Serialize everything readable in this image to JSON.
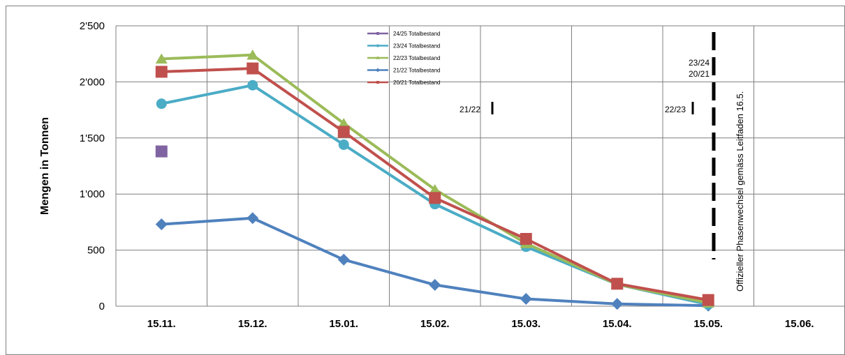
{
  "chart_data": {
    "type": "line",
    "ylabel": "Mengen in Tonnen",
    "xlabel": "",
    "categories": [
      "15.11.",
      "15.12.",
      "15.01.",
      "15.02.",
      "15.03.",
      "15.04.",
      "15.05.",
      "15.06."
    ],
    "y_ticks": [
      "0",
      "500",
      "1'000",
      "1'500",
      "2'000",
      "2'500"
    ],
    "ylim": [
      0,
      2500
    ],
    "grid": true,
    "legend_position": "top-center",
    "series": [
      {
        "name": "24/25 Totalbestand",
        "color": "#8064a2",
        "marker": "square",
        "values": [
          1380,
          null,
          null,
          null,
          null,
          null,
          null,
          null
        ]
      },
      {
        "name": "23/24 Totalbestand",
        "color": "#4bacc6",
        "marker": "circle",
        "values": [
          1805,
          1970,
          1440,
          910,
          530,
          195,
          15,
          null
        ]
      },
      {
        "name": "22/23 Totalbestand",
        "color": "#9bbb59",
        "marker": "triangle",
        "values": [
          2205,
          2240,
          1630,
          1040,
          560,
          195,
          30,
          null
        ]
      },
      {
        "name": "21/22 Totalbestand",
        "color": "#4f81bd",
        "marker": "diamond",
        "values": [
          730,
          785,
          415,
          190,
          65,
          20,
          5,
          null
        ]
      },
      {
        "name": "20/21 Totalbestand",
        "color": "#c0504d",
        "marker": "square",
        "values": [
          2090,
          2120,
          1555,
          965,
          600,
          200,
          55,
          null
        ]
      }
    ],
    "annotations": {
      "phase_change_label": "Offizieller Phasenwechsel gemäss Leitfaden 16.5.",
      "marker_2122": "21/22",
      "marker_2223": "22/23",
      "marker_2324": "23/24",
      "marker_2021": "20/21"
    }
  }
}
